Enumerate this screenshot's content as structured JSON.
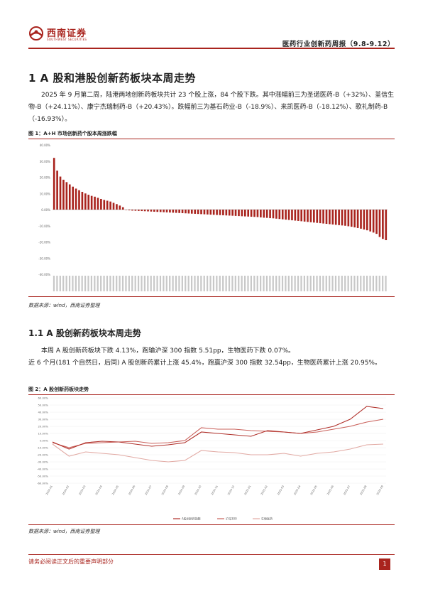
{
  "header": {
    "logo_text": "西南证券",
    "logo_sub": "SOUTHWEST SECURITIES",
    "report_title": "医药行业创新药周报（9.8-9.12）",
    "brand_color": "#a9241e"
  },
  "section": {
    "title": "1 A 股和港股创新药板块本周走势",
    "body": "2025 年 9 月第二周，陆港两地创新药板块共计 23 个股上涨，84 个股下跌。其中涨幅前三为圣诺医药-B（+32%）、荃信生物-B（+24.11%）、康宁杰瑞制药-B（+20.43%）。跌幅前三为基石药业-B（-18.9%）、来凯医药-B（-18.12%）、歌礼制药-B（-16.93%）。"
  },
  "figure1": {
    "caption": "图 1：A+H 市场创新药个股本周涨跌幅",
    "source": "数据来源：wind，西南证券整理"
  },
  "subsection": {
    "title": "1.1 A 股创新药板块本周走势",
    "body_line1": "本周 A 股创新药板块下跌 4.13%，跑输沪深 300 指数 5.51pp，生物医药下跌 0.07%。",
    "body_line2": "近 6 个月(181 个自然日，后同) A 股创新药累计上涨 45.4%，跑赢沪深 300 指数 32.54pp，生物医药累计上涨 20.95%。"
  },
  "figure2": {
    "caption": "图 2：A 股创新药板块走势",
    "source": "数据来源：wind，西南证券整理"
  },
  "footer": {
    "note": "请务必阅读正文后的重要声明部分",
    "page": "1"
  },
  "chart_data": [
    {
      "type": "bar",
      "ylim": [
        -40,
        40
      ],
      "yticks": [
        "40.00%",
        "30.00%",
        "20.00%",
        "10.00%",
        "0.00%",
        "-10.00%",
        "-20.00%",
        "-30.00%",
        "-40.00%"
      ],
      "color": "#a9241e",
      "values": [
        32.0,
        24.11,
        20.43,
        18.5,
        17.0,
        15.6,
        14.2,
        13.0,
        12.0,
        11.0,
        10.0,
        9.2,
        8.5,
        8.0,
        7.3,
        6.6,
        6.0,
        5.5,
        5.0,
        4.2,
        3.4,
        2.5,
        1.5,
        -0.2,
        -0.4,
        -0.6,
        -0.7,
        -0.8,
        -0.9,
        -1.0,
        -1.1,
        -1.2,
        -1.3,
        -1.4,
        -1.5,
        -1.6,
        -1.7,
        -1.8,
        -1.9,
        -2.0,
        -2.1,
        -2.2,
        -2.3,
        -2.4,
        -2.5,
        -2.6,
        -2.7,
        -2.8,
        -2.9,
        -3.0,
        -3.1,
        -3.2,
        -3.3,
        -3.4,
        -3.5,
        -3.6,
        -3.7,
        -3.8,
        -3.9,
        -4.0,
        -4.1,
        -4.2,
        -4.3,
        -4.4,
        -4.5,
        -4.6,
        -4.8,
        -5.0,
        -5.1,
        -5.3,
        -5.4,
        -5.6,
        -5.8,
        -6.0,
        -6.2,
        -6.4,
        -6.6,
        -6.8,
        -7.0,
        -7.2,
        -7.4,
        -7.6,
        -7.8,
        -8.0,
        -8.2,
        -8.4,
        -8.6,
        -8.8,
        -9.0,
        -9.2,
        -9.4,
        -9.6,
        -9.8,
        -10.0,
        -10.3,
        -10.6,
        -11.0,
        -11.4,
        -11.8,
        -12.3,
        -12.8,
        -13.5,
        -14.2,
        -15.0,
        -16.93,
        -18.12,
        -18.9
      ]
    },
    {
      "type": "line",
      "ylim": [
        -60,
        60
      ],
      "yticks": [
        "60.00%",
        "50.00%",
        "40.00%",
        "30.00%",
        "20.00%",
        "10.00%",
        "0.00%",
        "-10.00%",
        "-20.00%",
        "-30.00%",
        "-40.00%",
        "-50.00%",
        "-60.00%"
      ],
      "x": [
        "2024-01",
        "2024-02",
        "2024-03",
        "2024-04",
        "2024-05",
        "2024-06",
        "2024-07",
        "2024-08",
        "2024-09",
        "2024-10",
        "2024-11",
        "2024-12",
        "2025-01",
        "2025-02",
        "2025-03",
        "2025-04",
        "2025-05",
        "2025-06",
        "2025-07",
        "2025-08",
        "2025-09"
      ],
      "series": [
        {
          "name": "A股创新药指数",
          "color": "#b0302a",
          "values": [
            -2,
            -12,
            -3,
            -1,
            -2,
            -5,
            -8,
            -6,
            -3,
            12,
            10,
            8,
            6,
            14,
            12,
            10,
            15,
            20,
            30,
            48,
            45
          ]
        },
        {
          "name": "沪深300",
          "color": "#c9605a",
          "values": [
            -3,
            -10,
            -4,
            -3,
            -2,
            -1,
            -4,
            -3,
            0,
            18,
            16,
            16,
            14,
            13,
            12,
            10,
            12,
            16,
            20,
            26,
            30
          ]
        },
        {
          "name": "生物医药",
          "color": "#e2aaa4",
          "values": [
            -5,
            -22,
            -16,
            -18,
            -20,
            -24,
            -28,
            -30,
            -28,
            -14,
            -16,
            -17,
            -20,
            -20,
            -18,
            -22,
            -18,
            -16,
            -12,
            -6,
            -5
          ]
        }
      ]
    }
  ]
}
